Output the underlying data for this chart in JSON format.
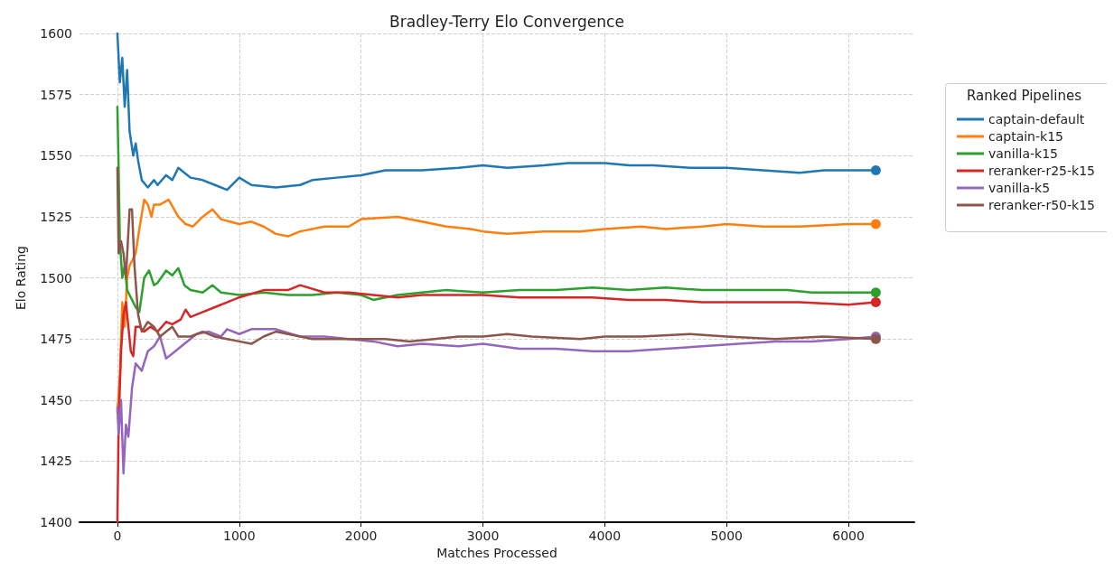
{
  "chart_data": {
    "type": "line",
    "title": "Bradley-Terry Elo Convergence",
    "xlabel": "Matches Processed",
    "ylabel": "Elo Rating",
    "legend_title": "Ranked Pipelines",
    "legend": "right",
    "grid": true,
    "xlim": [
      -311,
      6541
    ],
    "xticks": [
      0,
      1000,
      2000,
      3000,
      4000,
      5000,
      6000
    ],
    "ylim": [
      1400,
      1600
    ],
    "yticks": [
      1400,
      1425,
      1450,
      1475,
      1500,
      1525,
      1550,
      1575,
      1600
    ],
    "series": [
      {
        "name": "captain-default",
        "color": "#1f77b4",
        "x": [
          0,
          20,
          40,
          60,
          80,
          100,
          130,
          150,
          170,
          200,
          250,
          300,
          330,
          400,
          450,
          500,
          550,
          600,
          700,
          800,
          900,
          1000,
          1100,
          1300,
          1500,
          1600,
          1800,
          2000,
          2200,
          2500,
          2800,
          3000,
          3200,
          3500,
          3700,
          4000,
          4200,
          4400,
          4700,
          5000,
          5300,
          5600,
          5800,
          6000,
          6225
        ],
        "values": [
          1600,
          1580,
          1590,
          1570,
          1585,
          1560,
          1550,
          1555,
          1548,
          1540,
          1537,
          1540,
          1538,
          1542,
          1540,
          1545,
          1543,
          1541,
          1540,
          1538,
          1536,
          1541,
          1538,
          1537,
          1538,
          1540,
          1541,
          1542,
          1544,
          1544,
          1545,
          1546,
          1545,
          1546,
          1547,
          1547,
          1546,
          1546,
          1545,
          1545,
          1544,
          1543,
          1544,
          1544,
          1544
        ]
      },
      {
        "name": "captain-k15",
        "color": "#ff7f0e",
        "x": [
          0,
          20,
          40,
          60,
          80,
          100,
          150,
          180,
          220,
          250,
          280,
          300,
          350,
          420,
          500,
          560,
          620,
          700,
          780,
          850,
          1000,
          1100,
          1200,
          1300,
          1400,
          1500,
          1700,
          1900,
          2000,
          2300,
          2500,
          2700,
          2900,
          3000,
          3200,
          3500,
          3800,
          4000,
          4300,
          4500,
          4800,
          5000,
          5300,
          5600,
          6000,
          6225
        ],
        "values": [
          1445,
          1460,
          1490,
          1480,
          1500,
          1505,
          1510,
          1520,
          1532,
          1530,
          1525,
          1530,
          1530,
          1532,
          1525,
          1522,
          1521,
          1525,
          1528,
          1524,
          1522,
          1523,
          1521,
          1518,
          1517,
          1519,
          1521,
          1521,
          1524,
          1525,
          1523,
          1521,
          1520,
          1519,
          1518,
          1519,
          1519,
          1520,
          1521,
          1520,
          1521,
          1522,
          1521,
          1521,
          1522,
          1522
        ]
      },
      {
        "name": "vanilla-k15",
        "color": "#2ca02c",
        "x": [
          0,
          10,
          20,
          40,
          60,
          80,
          100,
          130,
          150,
          180,
          220,
          260,
          300,
          330,
          400,
          450,
          500,
          550,
          600,
          700,
          780,
          850,
          1000,
          1200,
          1400,
          1600,
          1800,
          2000,
          2100,
          2300,
          2500,
          2700,
          3000,
          3300,
          3600,
          3900,
          4200,
          4500,
          4800,
          5000,
          5300,
          5500,
          5700,
          6000,
          6225
        ],
        "values": [
          1570,
          1545,
          1515,
          1500,
          1505,
          1495,
          1493,
          1490,
          1488,
          1486,
          1500,
          1503,
          1497,
          1498,
          1503,
          1501,
          1504,
          1497,
          1495,
          1494,
          1497,
          1494,
          1493,
          1494,
          1493,
          1493,
          1494,
          1493,
          1491,
          1493,
          1494,
          1495,
          1494,
          1495,
          1495,
          1496,
          1495,
          1496,
          1495,
          1495,
          1495,
          1495,
          1494,
          1494,
          1494
        ]
      },
      {
        "name": "reranker-r25-k15",
        "color": "#d62728",
        "x": [
          0,
          10,
          30,
          50,
          70,
          90,
          110,
          130,
          150,
          180,
          220,
          270,
          330,
          400,
          450,
          520,
          560,
          600,
          700,
          800,
          900,
          1000,
          1200,
          1400,
          1500,
          1700,
          1900,
          2100,
          2300,
          2500,
          2800,
          3000,
          3300,
          3600,
          3900,
          4200,
          4500,
          4800,
          5200,
          5600,
          6000,
          6225
        ],
        "values": [
          1400,
          1440,
          1470,
          1485,
          1490,
          1480,
          1470,
          1468,
          1480,
          1480,
          1478,
          1480,
          1478,
          1482,
          1481,
          1483,
          1487,
          1484,
          1486,
          1488,
          1490,
          1492,
          1495,
          1495,
          1497,
          1494,
          1494,
          1493,
          1492,
          1493,
          1493,
          1493,
          1492,
          1492,
          1492,
          1491,
          1491,
          1490,
          1490,
          1490,
          1489,
          1490
        ]
      },
      {
        "name": "vanilla-k5",
        "color": "#9467bd",
        "x": [
          0,
          10,
          30,
          50,
          70,
          90,
          120,
          150,
          200,
          250,
          300,
          350,
          400,
          450,
          550,
          650,
          750,
          850,
          900,
          1000,
          1100,
          1300,
          1500,
          1700,
          1900,
          2100,
          2300,
          2500,
          2800,
          3000,
          3300,
          3600,
          3900,
          4200,
          4500,
          4800,
          5100,
          5400,
          5700,
          6000,
          6225
        ],
        "values": [
          1447,
          1436,
          1450,
          1420,
          1440,
          1435,
          1455,
          1465,
          1462,
          1470,
          1472,
          1476,
          1467,
          1469,
          1473,
          1477,
          1478,
          1476,
          1479,
          1477,
          1479,
          1479,
          1476,
          1476,
          1475,
          1474,
          1472,
          1473,
          1472,
          1473,
          1471,
          1471,
          1470,
          1470,
          1471,
          1472,
          1473,
          1474,
          1474,
          1475,
          1476
        ]
      },
      {
        "name": "reranker-r50-k15",
        "color": "#8c564b",
        "x": [
          0,
          10,
          30,
          50,
          70,
          100,
          120,
          140,
          170,
          200,
          250,
          300,
          350,
          400,
          450,
          500,
          600,
          700,
          800,
          900,
          1000,
          1100,
          1200,
          1300,
          1400,
          1600,
          1800,
          2000,
          2200,
          2400,
          2600,
          2800,
          3000,
          3200,
          3400,
          3800,
          4000,
          4300,
          4700,
          5000,
          5400,
          5800,
          6225
        ],
        "values": [
          1545,
          1510,
          1515,
          1510,
          1500,
          1528,
          1528,
          1505,
          1485,
          1478,
          1482,
          1480,
          1476,
          1478,
          1480,
          1476,
          1476,
          1478,
          1476,
          1475,
          1474,
          1473,
          1476,
          1478,
          1477,
          1475,
          1475,
          1475,
          1475,
          1474,
          1475,
          1476,
          1476,
          1477,
          1476,
          1475,
          1476,
          1476,
          1477,
          1476,
          1475,
          1476,
          1475
        ]
      }
    ]
  }
}
